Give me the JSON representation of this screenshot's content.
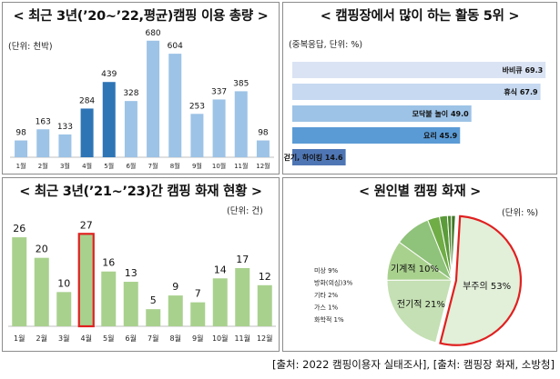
{
  "source_text": "[출처: 2022 캠핑이용자 실태조사], [출처: 캠핑장 화재, 소방청]",
  "chart_data": [
    {
      "type": "bar",
      "title": "< 최근 3년(’20~’22,평균)캠핑 이용 총량 >",
      "unit_note": "(단위: 천박)",
      "categories": [
        "1월",
        "2월",
        "3월",
        "4월",
        "5월",
        "6월",
        "7월",
        "8월",
        "9월",
        "10월",
        "11월",
        "12월"
      ],
      "values": [
        98,
        163,
        133,
        284,
        439,
        328,
        680,
        604,
        253,
        337,
        385,
        98
      ],
      "highlight": [
        3,
        4
      ],
      "ylim": [
        0,
        700
      ],
      "colors": {
        "bar": "#9dc3e6",
        "highlight": "#2e75b6"
      }
    },
    {
      "type": "bar",
      "orientation": "horizontal",
      "title": "< 캠핑장에서 많이 하는 활동 5위 >",
      "unit_note": "(중복응답, 단위: %)",
      "categories": [
        "바비큐",
        "휴식",
        "모닥불 놀이",
        "요리",
        "걷기, 하이킹"
      ],
      "values": [
        69.3,
        67.9,
        49.0,
        45.9,
        14.6
      ],
      "labels": [
        "바비큐 69.3",
        "휴식 67.9",
        "모닥불 놀이 49.0",
        "요리 45.9",
        "걷기, 하이킹 14.6"
      ],
      "xlim": [
        0,
        70
      ],
      "colors": [
        "#dae3f3",
        "#c6d9f1",
        "#9dc3e6",
        "#5b9bd5",
        "#4f76b4"
      ]
    },
    {
      "type": "bar",
      "title": "< 최근 3년(’21~’23)간 캠핑 화재 현황 >",
      "unit_note": "(단위: 건)",
      "categories": [
        "1월",
        "2월",
        "3월",
        "4월",
        "5월",
        "6월",
        "7월",
        "8월",
        "9월",
        "10월",
        "11월",
        "12월"
      ],
      "values": [
        26,
        20,
        10,
        27,
        16,
        13,
        5,
        9,
        7,
        14,
        17,
        12
      ],
      "highlight": [
        3
      ],
      "ylim": [
        0,
        30
      ],
      "colors": {
        "bar": "#a9d18e",
        "highlight_border": "#e02020"
      }
    },
    {
      "type": "pie",
      "title": "< 원인별 캠핑 화재 >",
      "unit_note": "(단위: %)",
      "slices": [
        {
          "name": "부주의",
          "value": 53,
          "label": "부주의 53%",
          "color": "#e2efd9"
        },
        {
          "name": "전기적",
          "value": 21,
          "label": "전기적 21%",
          "color": "#c5e0b4"
        },
        {
          "name": "기계적",
          "value": 10,
          "label": "기계적 10%",
          "color": "#a9d18e"
        },
        {
          "name": "미상",
          "value": 9,
          "label": "미상 9%",
          "color": "#8fc27a"
        },
        {
          "name": "방화(의심)",
          "value": 3,
          "label": "방화(의심)3%",
          "color": "#70ad47"
        },
        {
          "name": "기타",
          "value": 2,
          "label": "기타 2%",
          "color": "#5b9b3a"
        },
        {
          "name": "가스",
          "value": 1,
          "label": "가스  1%",
          "color": "#4e8a30"
        },
        {
          "name": "화학적",
          "value": 1,
          "label": "화학적 1%",
          "color": "#3f7526"
        }
      ],
      "explode_color": "#e02020"
    }
  ]
}
